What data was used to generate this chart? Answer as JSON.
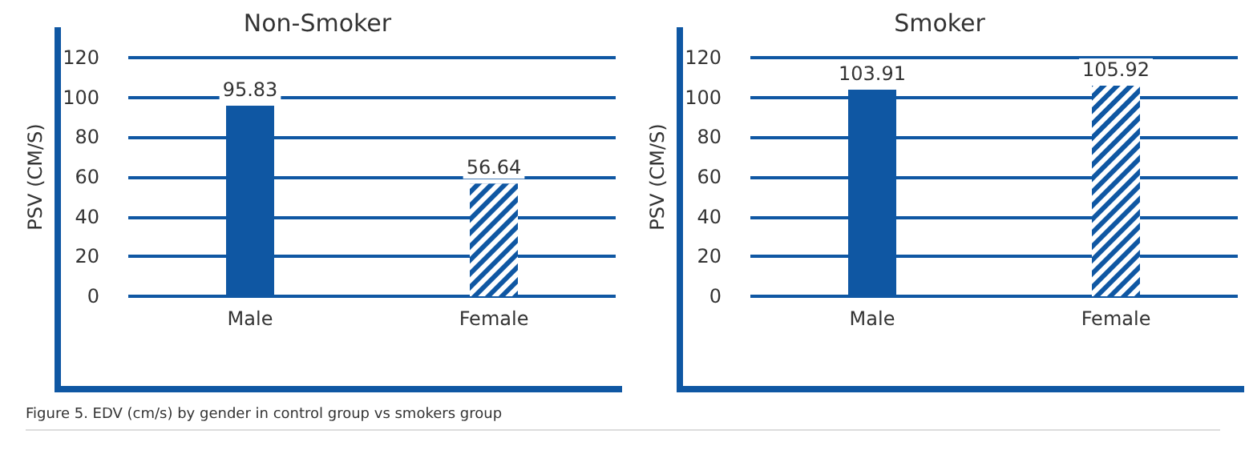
{
  "chart_data": [
    {
      "type": "bar",
      "title": "Non-Smoker",
      "ylabel": "PSV (CM/S)",
      "categories": [
        "Male",
        "Female"
      ],
      "values": [
        95.83,
        56.64
      ],
      "colors": [
        "#0f57a3",
        "#0f57a3"
      ],
      "ylim": [
        0,
        120
      ],
      "yticks": [
        0,
        20,
        40,
        60,
        80,
        100,
        120
      ],
      "grid": "y",
      "data_labels": true,
      "annotations": [
        "Figure 5. EDV (cm/s) by gender in control group vs smokers group"
      ]
    },
    {
      "type": "bar",
      "title": "Smoker",
      "ylabel": "PSV (CM/S)",
      "categories": [
        "Male",
        "Female"
      ],
      "values": [
        103.91,
        105.92
      ],
      "colors": [
        "#0f57a3",
        "#0f57a3"
      ],
      "ylim": [
        0,
        120
      ],
      "yticks": [
        0,
        20,
        40,
        60,
        80,
        100,
        120
      ],
      "grid": "y",
      "data_labels": true
    }
  ]
}
